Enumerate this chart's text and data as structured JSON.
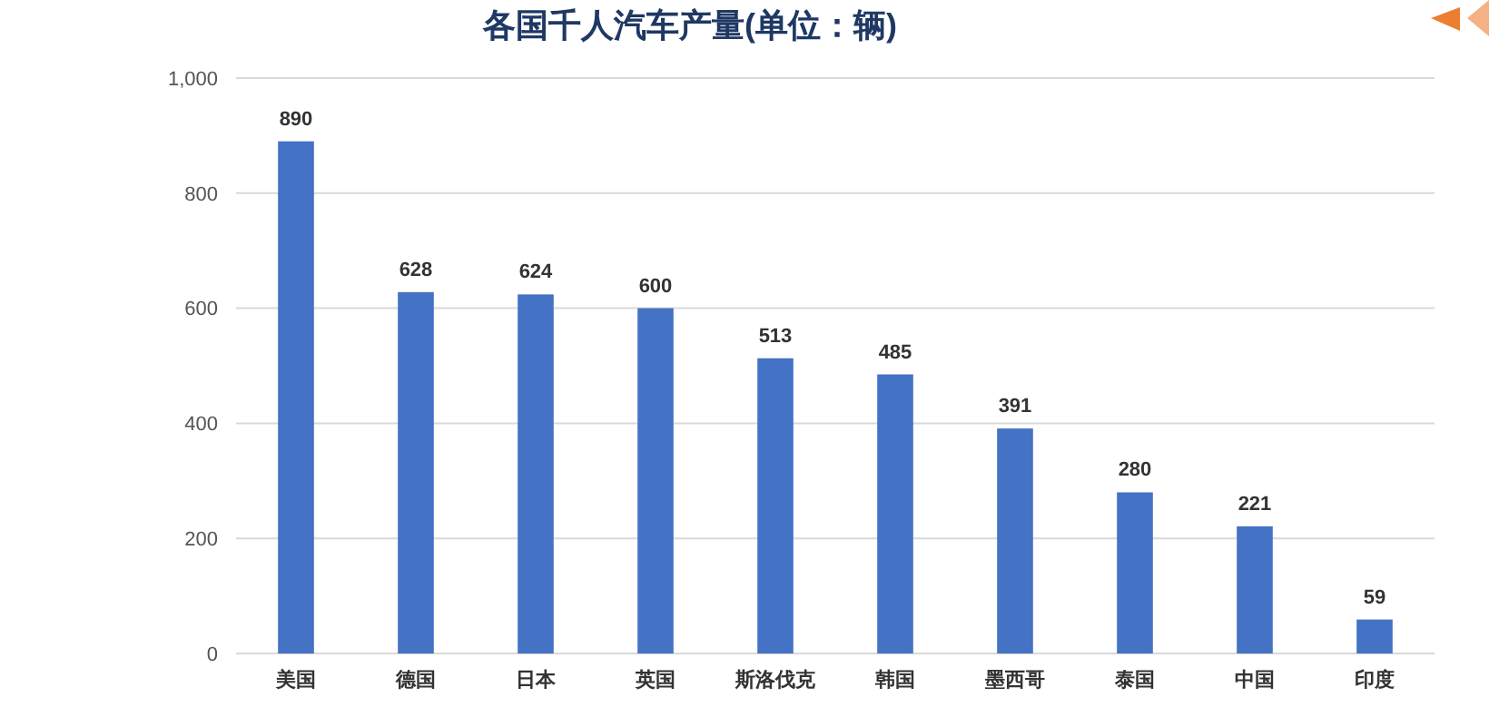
{
  "chart_data": {
    "type": "bar",
    "title": "各国千人汽车产量(单位：辆)",
    "categories": [
      "美国",
      "德国",
      "日本",
      "英国",
      "斯洛伐克",
      "韩国",
      "墨西哥",
      "泰国",
      "中国",
      "印度"
    ],
    "values": [
      890,
      628,
      624,
      600,
      513,
      485,
      391,
      280,
      221,
      59
    ],
    "color": "#4472c4",
    "ylim": [
      0,
      1000
    ],
    "yticks": [
      0,
      200,
      400,
      600,
      800,
      {
        "value": 1000,
        "label": "1,000"
      }
    ],
    "grid": "y",
    "data_labels": true
  }
}
